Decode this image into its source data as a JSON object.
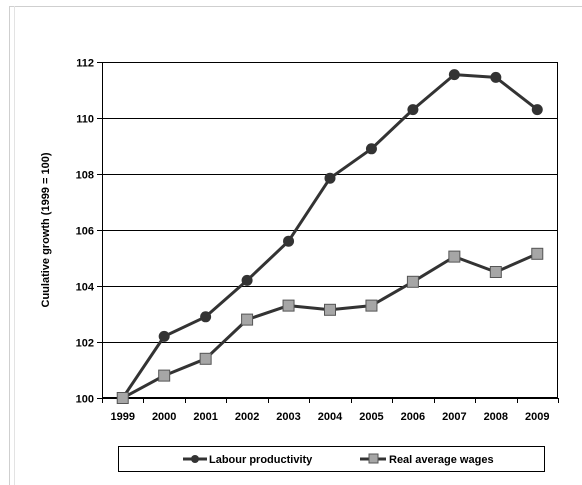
{
  "chart_data": {
    "type": "line",
    "title": "",
    "xlabel": "",
    "ylabel": "Cuulative growth (1999 = 100)",
    "categories": [
      "1999",
      "2000",
      "2001",
      "2002",
      "2003",
      "2004",
      "2005",
      "2006",
      "2007",
      "2008",
      "2009"
    ],
    "ylim": [
      100,
      112
    ],
    "yticks": [
      100,
      102,
      104,
      106,
      108,
      110,
      112
    ],
    "grid": "horizontal",
    "legend_position": "bottom",
    "series": [
      {
        "name": "Labour productivity",
        "marker": "circle",
        "color": "#333333",
        "values": [
          100,
          102.2,
          102.9,
          104.2,
          105.6,
          107.85,
          108.9,
          110.3,
          111.55,
          111.45,
          110.3
        ]
      },
      {
        "name": "Real average wages",
        "marker": "square",
        "color": "#333333",
        "marker_fill": "#a6a6a6",
        "values": [
          100,
          100.8,
          101.4,
          102.8,
          103.3,
          103.15,
          103.3,
          104.15,
          105.05,
          104.5,
          105.15
        ]
      }
    ]
  }
}
